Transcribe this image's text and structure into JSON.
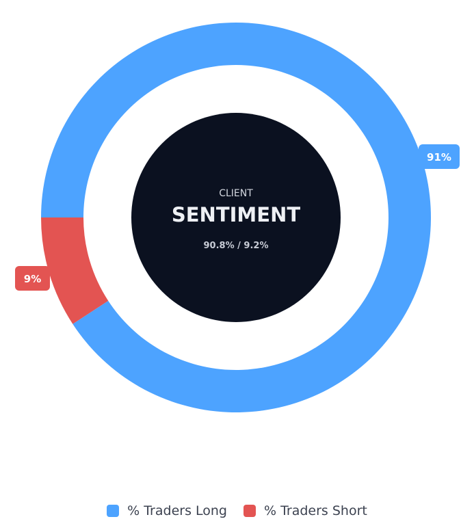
{
  "chart_data": {
    "type": "pie",
    "variant": "doughnut",
    "series": [
      {
        "name": "% Traders Long",
        "value": 90.8,
        "label": "91%",
        "color": "#4da3ff"
      },
      {
        "name": "% Traders Short",
        "value": 9.2,
        "label": "9%",
        "color": "#e35452"
      }
    ],
    "legend_position": "bottom"
  },
  "center": {
    "small": "CLIENT",
    "big": "SENTIMENT",
    "sub": "90.8% / 9.2%",
    "bg_color": "#0b1120"
  },
  "legend": {
    "items": [
      {
        "label": "% Traders Long",
        "color": "#4da3ff"
      },
      {
        "label": "% Traders Short",
        "color": "#e35452"
      }
    ]
  }
}
